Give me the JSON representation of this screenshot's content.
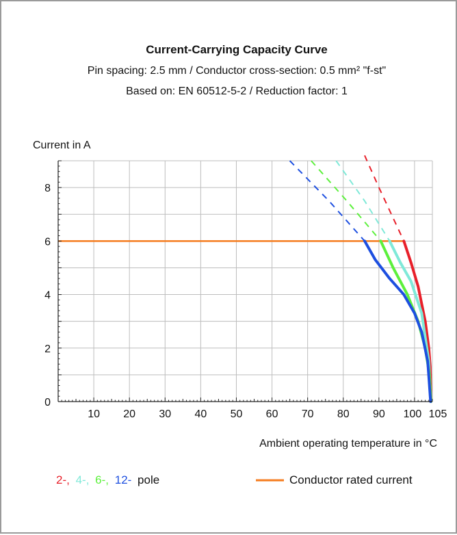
{
  "chart_data": {
    "type": "line",
    "title": "Current-Carrying Capacity Curve",
    "subtitle_1": "Pin spacing: 2.5 mm / Conductor cross-section: 0.5 mm² \"f-st\"",
    "subtitle_2": "Based on: EN 60512-5-2 / Reduction factor: 1",
    "ylabel": "Current in A",
    "xlabel": "Ambient operating temperature in °C",
    "xlim": [
      0,
      105
    ],
    "ylim": [
      0,
      9
    ],
    "x_ticks": [
      "10",
      "20",
      "30",
      "40",
      "50",
      "60",
      "70",
      "80",
      "90",
      "100",
      "105"
    ],
    "y_ticks": [
      "0",
      "2",
      "4",
      "6",
      "8"
    ],
    "grid": true,
    "colors": {
      "red": "#e8202a",
      "cyan": "#7fe9d8",
      "green": "#5cf03c",
      "blue": "#1d4fe0",
      "orange": "#f57c1f"
    },
    "legend": {
      "pole_items": [
        "2-,",
        "4-,",
        "6-,",
        "12-"
      ],
      "pole_suffix": "pole",
      "rated_label": "Conductor rated current"
    },
    "rated_current": 6,
    "series": [
      {
        "color": "#e8202a",
        "solid": [
          [
            97,
            6
          ],
          [
            99,
            5.2
          ],
          [
            101,
            4.3
          ],
          [
            103,
            3
          ],
          [
            104,
            2
          ],
          [
            104.4,
            1.3
          ],
          [
            104.6,
            0
          ]
        ],
        "dashed": [
          [
            86,
            9.2
          ],
          [
            90,
            8
          ],
          [
            97,
            6
          ]
        ]
      },
      {
        "color": "#7fe9d8",
        "solid": [
          [
            93,
            6
          ],
          [
            96,
            5.2
          ],
          [
            99,
            4.5
          ],
          [
            102,
            3.3
          ],
          [
            104,
            1.5
          ],
          [
            104.6,
            0
          ]
        ],
        "dashed": [
          [
            78,
            9
          ],
          [
            86,
            7.5
          ],
          [
            93,
            6
          ]
        ]
      },
      {
        "color": "#5cf03c",
        "solid": [
          [
            90.5,
            6
          ],
          [
            94,
            5
          ],
          [
            98,
            4
          ],
          [
            101,
            3
          ],
          [
            103,
            2
          ],
          [
            104.2,
            1
          ],
          [
            104.6,
            0
          ]
        ],
        "dashed": [
          [
            71,
            9
          ],
          [
            81,
            7.5
          ],
          [
            90.5,
            6
          ]
        ]
      },
      {
        "color": "#1d4fe0",
        "solid": [
          [
            86,
            6
          ],
          [
            89,
            5.3
          ],
          [
            93,
            4.6
          ],
          [
            97,
            4
          ],
          [
            100,
            3.3
          ],
          [
            102,
            2.6
          ],
          [
            103.7,
            1.5
          ],
          [
            104.5,
            0
          ]
        ],
        "dashed": [
          [
            65,
            9
          ],
          [
            76,
            7.5
          ],
          [
            86,
            6
          ]
        ]
      }
    ]
  }
}
